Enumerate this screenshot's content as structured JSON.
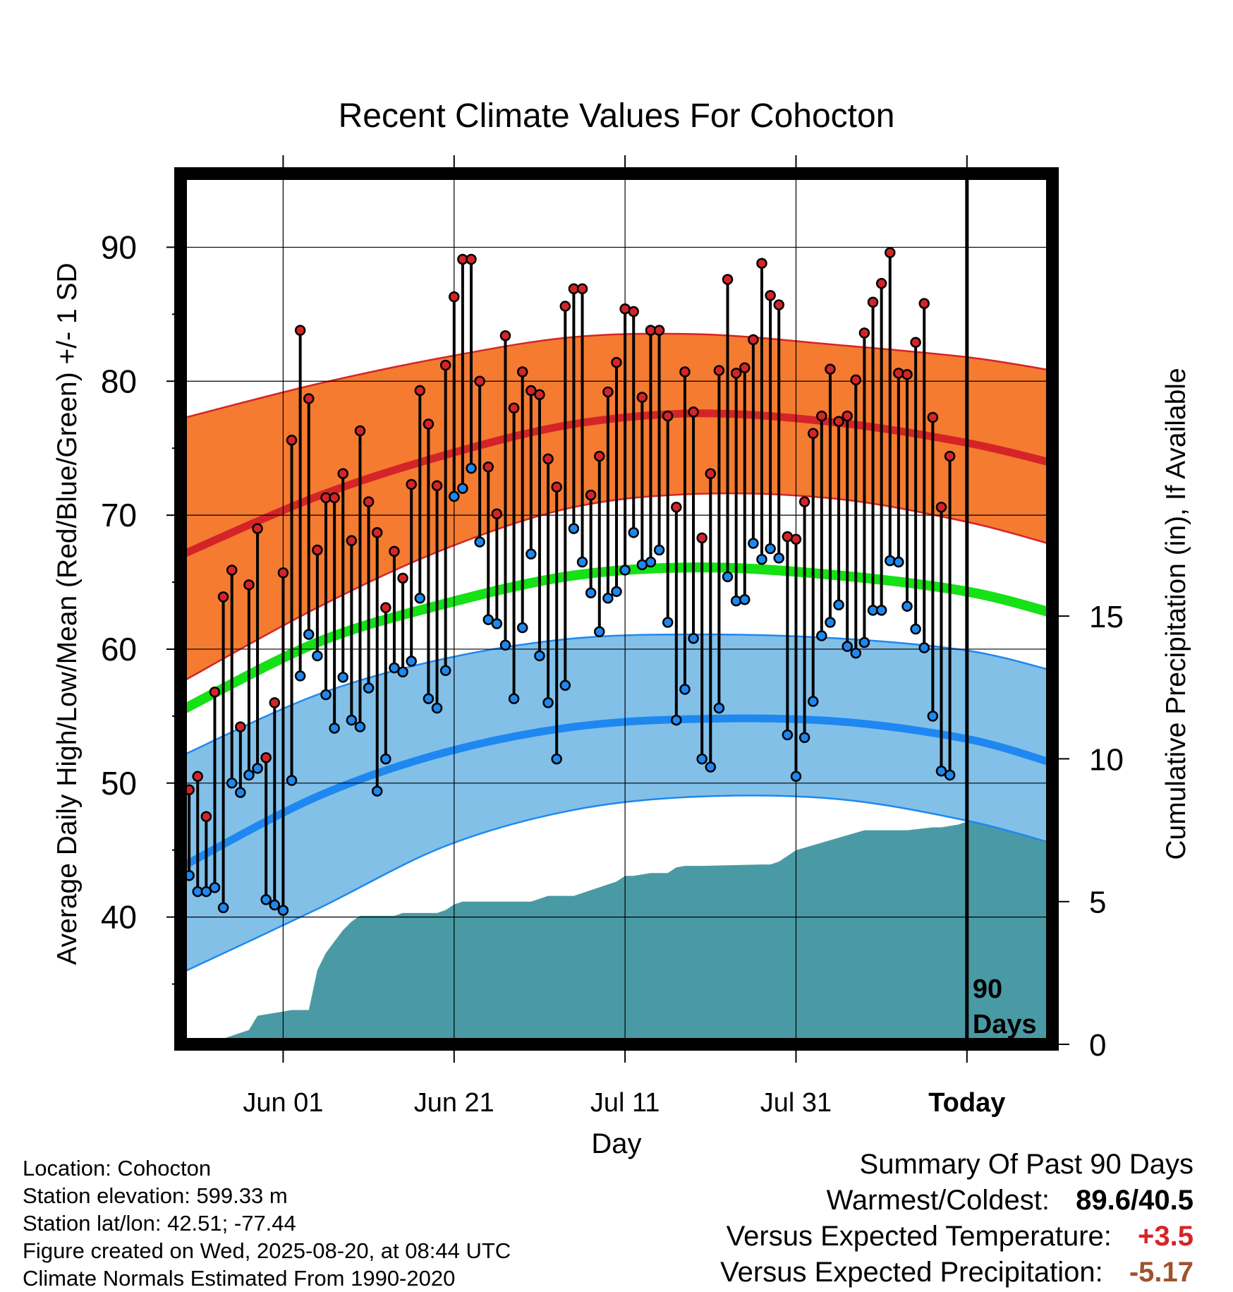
{
  "chart_data": {
    "type": "line",
    "title": "Recent Climate Values For Cohocton",
    "xlabel": "Day",
    "ylabel": "Average Daily High/Low/Mean (Red/Blue/Green) +/- 1 SD",
    "y2label": "Cumulative Precipitation (in), If Available",
    "x_tick_labels": [
      "Jun 01",
      "Jun 21",
      "Jul 11",
      "Jul 31",
      "Today"
    ],
    "y_ticks": [
      "40",
      "50",
      "60",
      "70",
      "80",
      "90"
    ],
    "y2_ticks": [
      "0",
      "5",
      "10",
      "15"
    ],
    "ylim": [
      30.5,
      95.5
    ],
    "y2lim": [
      0,
      30.5
    ],
    "xlim": [
      "2025-05-20",
      "2025-08-30"
    ],
    "today": "2025-08-20",
    "today_annotation": "90 Days",
    "grid": true,
    "colors": {
      "high": "#d52428",
      "high_band": "#f47b30",
      "low": "#1e88f0",
      "low_band": "#82c0e8",
      "mean": "#16e016",
      "precip": "#4a9aa5"
    },
    "normal_high": {
      "dates": [
        "2025-05-20",
        "2025-06-05",
        "2025-06-20",
        "2025-07-05",
        "2025-07-20",
        "2025-08-05",
        "2025-08-20",
        "2025-08-30"
      ],
      "mean": [
        67.0,
        71.4,
        74.5,
        76.8,
        77.6,
        76.9,
        75.4,
        73.9
      ],
      "upper": [
        77.2,
        79.8,
        81.8,
        83.3,
        83.5,
        82.7,
        81.8,
        80.8
      ],
      "lower": [
        57.5,
        63.1,
        67.5,
        70.6,
        71.6,
        71.2,
        69.5,
        67.8
      ]
    },
    "normal_mean": {
      "dates": [
        "2025-05-20",
        "2025-06-05",
        "2025-06-20",
        "2025-07-05",
        "2025-07-20",
        "2025-08-05",
        "2025-08-20",
        "2025-08-30"
      ],
      "mean": [
        55.4,
        60.5,
        63.4,
        65.5,
        66.1,
        65.5,
        64.3,
        62.7
      ]
    },
    "normal_low": {
      "dates": [
        "2025-05-20",
        "2025-06-05",
        "2025-06-20",
        "2025-07-05",
        "2025-07-20",
        "2025-08-05",
        "2025-08-20",
        "2025-08-30"
      ],
      "mean": [
        43.7,
        49.0,
        52.3,
        54.2,
        54.8,
        54.6,
        53.3,
        51.5
      ],
      "upper": [
        52.0,
        56.6,
        59.3,
        60.8,
        61.1,
        60.8,
        59.9,
        58.4
      ],
      "lower": [
        35.8,
        40.6,
        45.3,
        48.0,
        49.0,
        48.8,
        47.2,
        45.5
      ]
    },
    "observed": {
      "start_date": "2025-05-21",
      "high": [
        49.5,
        50.5,
        47.5,
        56.8,
        63.9,
        65.9,
        54.2,
        64.8,
        69.0,
        51.9,
        56.0,
        65.7,
        75.6,
        83.8,
        78.7,
        67.4,
        71.3,
        71.3,
        73.1,
        68.1,
        76.3,
        71.0,
        68.7,
        63.1,
        67.3,
        65.3,
        72.3,
        79.3,
        76.8,
        72.2,
        81.2,
        86.3,
        89.1,
        89.1,
        80.0,
        73.6,
        70.1,
        83.4,
        78.0,
        80.7,
        79.3,
        79.0,
        74.2,
        72.1,
        85.6,
        86.9,
        86.9,
        71.5,
        74.4,
        79.2,
        81.4,
        85.4,
        85.2,
        78.8,
        83.8,
        83.8,
        77.4,
        70.6,
        80.7,
        77.7,
        68.3,
        73.1,
        80.8,
        87.6,
        80.6,
        81.0,
        83.1,
        88.8,
        86.4,
        85.7,
        68.4,
        68.2,
        71.0,
        76.1,
        77.4,
        80.9,
        77.0,
        77.4,
        80.1,
        83.6,
        85.9,
        87.3,
        89.6,
        80.6,
        80.5,
        82.9,
        85.8,
        77.3,
        70.6,
        74.4
      ],
      "low": [
        43.1,
        41.9,
        41.9,
        42.2,
        40.7,
        50.0,
        49.3,
        50.6,
        51.1,
        41.3,
        40.9,
        40.5,
        50.2,
        58.0,
        61.1,
        59.5,
        56.6,
        54.1,
        57.9,
        54.7,
        54.2,
        57.1,
        49.4,
        51.8,
        58.6,
        58.3,
        59.1,
        63.8,
        56.3,
        55.6,
        58.4,
        71.4,
        72.0,
        73.5,
        68.0,
        62.2,
        61.9,
        60.3,
        56.3,
        61.6,
        67.1,
        59.5,
        56.0,
        51.8,
        57.3,
        69.0,
        66.5,
        64.2,
        61.3,
        63.8,
        64.3,
        65.9,
        68.7,
        66.3,
        66.5,
        67.4,
        62.0,
        54.7,
        57.0,
        60.8,
        51.8,
        51.2,
        55.6,
        65.4,
        63.6,
        63.7,
        67.9,
        66.7,
        67.5,
        66.8,
        53.6,
        50.5,
        53.4,
        56.1,
        61.0,
        62.0,
        63.3,
        60.2,
        59.7,
        60.5,
        62.9,
        62.9,
        66.6,
        66.5,
        63.2,
        61.5,
        60.1,
        55.0,
        50.9,
        50.6
      ]
    },
    "precip_cumulative": {
      "dates": [
        "2025-05-20",
        "2025-05-21",
        "2025-05-22",
        "2025-05-23",
        "2025-05-25",
        "2025-05-26",
        "2025-05-27",
        "2025-05-28",
        "2025-05-29",
        "2025-05-30",
        "2025-05-31",
        "2025-06-01",
        "2025-06-02",
        "2025-06-03",
        "2025-06-04",
        "2025-06-05",
        "2025-06-06",
        "2025-06-07",
        "2025-06-08",
        "2025-06-09",
        "2025-06-10",
        "2025-06-14",
        "2025-06-15",
        "2025-06-16",
        "2025-06-17",
        "2025-06-18",
        "2025-06-19",
        "2025-06-20",
        "2025-06-21",
        "2025-06-22",
        "2025-06-23",
        "2025-06-25",
        "2025-06-30",
        "2025-07-01",
        "2025-07-02",
        "2025-07-05",
        "2025-07-06",
        "2025-07-07",
        "2025-07-08",
        "2025-07-09",
        "2025-07-10",
        "2025-07-11",
        "2025-07-12",
        "2025-07-13",
        "2025-07-14",
        "2025-07-15",
        "2025-07-16",
        "2025-07-17",
        "2025-07-18",
        "2025-07-19",
        "2025-07-20",
        "2025-07-27",
        "2025-07-28",
        "2025-07-29",
        "2025-07-30",
        "2025-07-31",
        "2025-08-08",
        "2025-08-09",
        "2025-08-13",
        "2025-08-16",
        "2025-08-17",
        "2025-08-18",
        "2025-08-19",
        "2025-08-20",
        "2025-08-30"
      ],
      "values": [
        0,
        0,
        0,
        0.1,
        0.2,
        0.3,
        0.4,
        0.5,
        1.0,
        1.05,
        1.1,
        1.15,
        1.2,
        1.2,
        1.2,
        2.6,
        3.2,
        3.6,
        4.0,
        4.3,
        4.5,
        4.5,
        4.6,
        4.6,
        4.6,
        4.6,
        4.6,
        4.7,
        4.9,
        5.0,
        5.0,
        5.0,
        5.0,
        5.1,
        5.2,
        5.2,
        5.3,
        5.4,
        5.5,
        5.6,
        5.7,
        5.9,
        5.9,
        5.95,
        6.0,
        6.0,
        6.0,
        6.2,
        6.25,
        6.25,
        6.25,
        6.3,
        6.3,
        6.4,
        6.6,
        6.8,
        7.5,
        7.5,
        7.5,
        7.6,
        7.6,
        7.65,
        7.7,
        7.8,
        7.8
      ]
    }
  },
  "footer": {
    "location": "Location: Cohocton",
    "elevation": "Station elevation: 599.33 m",
    "latlon": "Station lat/lon: 42.51; -77.44",
    "created": "Figure created on Wed, 2025-08-20, at 08:44 UTC",
    "normals": "Climate Normals Estimated From 1990-2020"
  },
  "summary": {
    "heading": "Summary Of Past 90 Days",
    "warm_cold_label": "Warmest/Coldest:",
    "warm_value": "89.6",
    "warm_cold_sep": "/",
    "cold_value": "40.5",
    "temp_label": "Versus Expected Temperature:",
    "temp_value": "+3.5",
    "temp_color": "#d52428",
    "precip_label": "Versus Expected Precipitation:",
    "precip_value": "-5.17",
    "precip_color": "#a0522d"
  }
}
